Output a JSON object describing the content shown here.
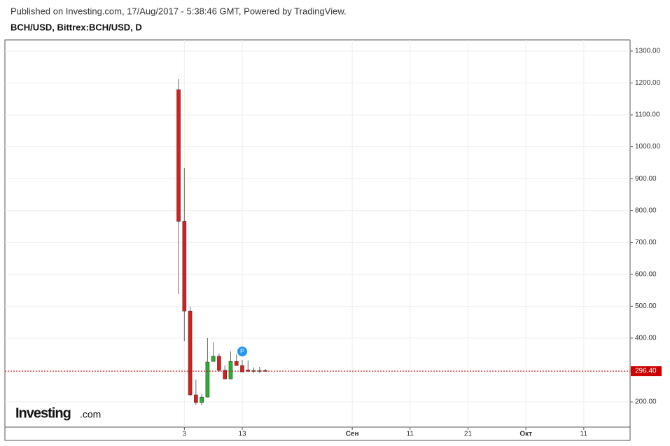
{
  "chart_data": {
    "type": "candlestick",
    "header": "Published on Investing.com, 17/Aug/2017 - 5:38:46 GMT, Powered by TradingView.",
    "title": "BCH/USD, Bittrex:BCH/USD, D",
    "x": [
      "2017-08-02",
      "2017-08-03",
      "2017-08-04",
      "2017-08-05",
      "2017-08-06",
      "2017-08-07",
      "2017-08-08",
      "2017-08-09",
      "2017-08-10",
      "2017-08-11",
      "2017-08-12",
      "2017-08-13",
      "2017-08-14",
      "2017-08-15",
      "2017-08-16",
      "2017-08-17"
    ],
    "series": [
      {
        "name": "open",
        "values": [
          1179,
          766,
          485,
          222,
          198,
          215,
          327,
          343,
          299,
          272,
          327,
          314,
          300,
          298,
          298,
          298
        ]
      },
      {
        "name": "high",
        "values": [
          1212,
          933,
          499,
          270,
          224,
          400,
          387,
          352,
          314,
          358,
          349,
          332,
          330,
          308,
          310,
          303
        ]
      },
      {
        "name": "low",
        "values": [
          538,
          391,
          218,
          191,
          189,
          218,
          327,
          294,
          272,
          272,
          314,
          294,
          294,
          290,
          290,
          294
        ]
      },
      {
        "name": "close",
        "values": [
          766,
          485,
          222,
          198,
          215,
          325,
          343,
          299,
          272,
          327,
          314,
          294,
          296,
          298,
          298,
          296.4
        ]
      }
    ],
    "up_color": "#22b52a",
    "down_color": "#dd1c1c",
    "xlim": [
      "2017-07-03",
      "2017-10-19"
    ],
    "xticks": [
      {
        "value": "2017-08-03",
        "label": "3"
      },
      {
        "value": "2017-08-13",
        "label": "13"
      },
      {
        "value": "2017-09-01",
        "label": "Сен"
      },
      {
        "value": "2017-09-11",
        "label": "11"
      },
      {
        "value": "2017-09-21",
        "label": "21"
      },
      {
        "value": "2017-10-01",
        "label": "Окт"
      },
      {
        "value": "2017-10-11",
        "label": "11"
      }
    ],
    "ylim": [
      121,
      1335
    ],
    "yticks": [
      {
        "value": 200,
        "label": "200.00"
      },
      {
        "value": 300,
        "label": "300.00"
      },
      {
        "value": 400,
        "label": "400.00"
      },
      {
        "value": 500,
        "label": "500.00"
      },
      {
        "value": 600,
        "label": "600.00"
      },
      {
        "value": 700,
        "label": "700.00"
      },
      {
        "value": 800,
        "label": "800.00"
      },
      {
        "value": 900,
        "label": "900.00"
      },
      {
        "value": 1000,
        "label": "1000.00"
      },
      {
        "value": 1100,
        "label": "1100.00"
      },
      {
        "value": 1200,
        "label": "1200.00"
      },
      {
        "value": 1300,
        "label": "1300.00"
      }
    ],
    "grid": true,
    "current_price": 296.4,
    "current_price_label": "296.40",
    "current_color": "#cc0000",
    "marker": {
      "date": "2017-08-13",
      "label": "P"
    },
    "brand": "Investing",
    "brand_suffix": ".com"
  }
}
